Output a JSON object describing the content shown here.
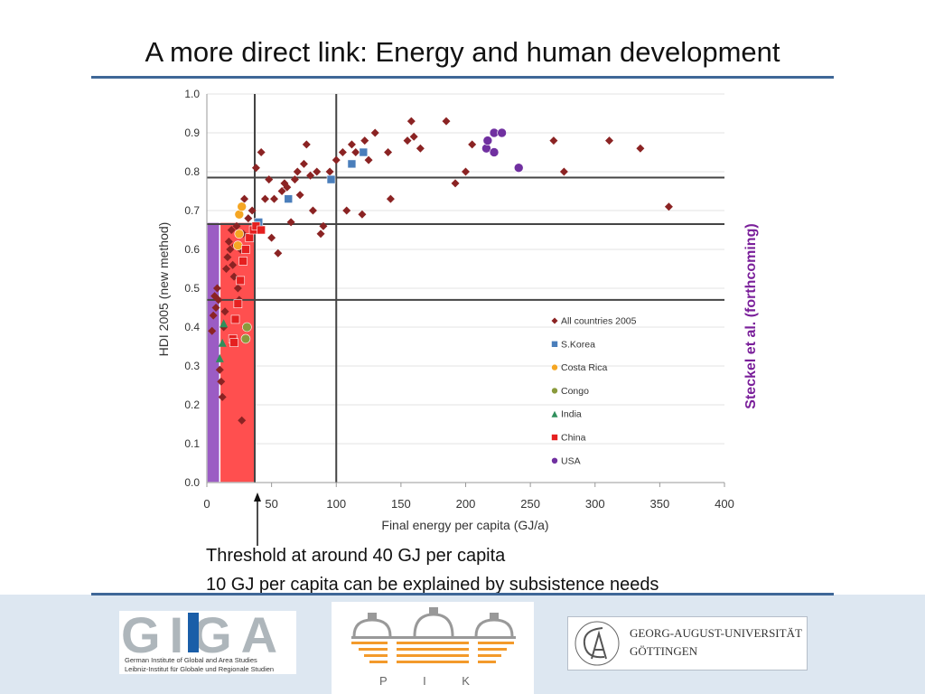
{
  "title": "A more direct link: Energy and human development",
  "chart_data": {
    "type": "scatter",
    "xlabel": "Final energy per capita (GJ/a)",
    "ylabel": "HDI 2005 (new method)",
    "xlim": [
      0,
      400
    ],
    "ylim": [
      0,
      1.0
    ],
    "xticks": [
      "0",
      "50",
      "100",
      "150",
      "200",
      "250",
      "300",
      "350",
      "400"
    ],
    "yticks": [
      "0.0",
      "0.1",
      "0.2",
      "0.3",
      "0.4",
      "0.5",
      "0.6",
      "0.7",
      "0.8",
      "0.9",
      "1.0"
    ],
    "grid": true,
    "legend_position": "lower-right",
    "reference_lines": {
      "vertical_x": [
        37,
        100
      ],
      "horizontal_y": [
        0.47,
        0.665,
        0.785
      ]
    },
    "shaded_regions": [
      {
        "x": [
          0,
          10
        ],
        "y": [
          0,
          0.67
        ],
        "color": "#9b5cc4"
      },
      {
        "x": [
          10,
          37
        ],
        "y": [
          0,
          0.67
        ],
        "color": "#ff4f4f"
      }
    ],
    "series": [
      {
        "name": "All countries 2005",
        "marker": "diamond",
        "color": "#8b2323",
        "points": [
          [
            4,
            0.39
          ],
          [
            5,
            0.43
          ],
          [
            6,
            0.48
          ],
          [
            7,
            0.45
          ],
          [
            8,
            0.5
          ],
          [
            9,
            0.47
          ],
          [
            10,
            0.29
          ],
          [
            11,
            0.26
          ],
          [
            12,
            0.22
          ],
          [
            13,
            0.4
          ],
          [
            14,
            0.44
          ],
          [
            15,
            0.55
          ],
          [
            16,
            0.58
          ],
          [
            17,
            0.62
          ],
          [
            18,
            0.6
          ],
          [
            19,
            0.65
          ],
          [
            20,
            0.56
          ],
          [
            21,
            0.53
          ],
          [
            22,
            0.61
          ],
          [
            23,
            0.66
          ],
          [
            24,
            0.5
          ],
          [
            25,
            0.47
          ],
          [
            26,
            0.6
          ],
          [
            27,
            0.16
          ],
          [
            28,
            0.64
          ],
          [
            29,
            0.73
          ],
          [
            30,
            0.4
          ],
          [
            32,
            0.68
          ],
          [
            35,
            0.7
          ],
          [
            38,
            0.81
          ],
          [
            40,
            0.66
          ],
          [
            42,
            0.85
          ],
          [
            45,
            0.73
          ],
          [
            48,
            0.78
          ],
          [
            50,
            0.63
          ],
          [
            52,
            0.73
          ],
          [
            55,
            0.59
          ],
          [
            58,
            0.75
          ],
          [
            60,
            0.77
          ],
          [
            62,
            0.76
          ],
          [
            65,
            0.67
          ],
          [
            68,
            0.78
          ],
          [
            70,
            0.8
          ],
          [
            72,
            0.74
          ],
          [
            75,
            0.82
          ],
          [
            77,
            0.87
          ],
          [
            80,
            0.79
          ],
          [
            82,
            0.7
          ],
          [
            85,
            0.8
          ],
          [
            88,
            0.64
          ],
          [
            90,
            0.66
          ],
          [
            95,
            0.8
          ],
          [
            100,
            0.83
          ],
          [
            105,
            0.85
          ],
          [
            108,
            0.7
          ],
          [
            112,
            0.87
          ],
          [
            115,
            0.85
          ],
          [
            120,
            0.69
          ],
          [
            122,
            0.88
          ],
          [
            125,
            0.83
          ],
          [
            130,
            0.9
          ],
          [
            140,
            0.85
          ],
          [
            142,
            0.73
          ],
          [
            155,
            0.88
          ],
          [
            158,
            0.93
          ],
          [
            160,
            0.89
          ],
          [
            165,
            0.86
          ],
          [
            185,
            0.93
          ],
          [
            192,
            0.77
          ],
          [
            200,
            0.8
          ],
          [
            205,
            0.87
          ],
          [
            268,
            0.88
          ],
          [
            276,
            0.8
          ],
          [
            311,
            0.88
          ],
          [
            335,
            0.86
          ],
          [
            357,
            0.71
          ]
        ]
      },
      {
        "name": "S.Korea",
        "marker": "square",
        "color": "#4a7ebb",
        "points": [
          [
            40,
            0.67
          ],
          [
            63,
            0.73
          ],
          [
            96,
            0.78
          ],
          [
            112,
            0.82
          ],
          [
            121,
            0.85
          ]
        ]
      },
      {
        "name": "Costa Rica",
        "marker": "circle",
        "color": "#f5a623",
        "points": [
          [
            24,
            0.61
          ],
          [
            25,
            0.64
          ],
          [
            25,
            0.69
          ],
          [
            27,
            0.71
          ]
        ]
      },
      {
        "name": "Congo",
        "marker": "circle",
        "color": "#8a9a3c",
        "points": [
          [
            30,
            0.37
          ],
          [
            31,
            0.4
          ]
        ]
      },
      {
        "name": "India",
        "marker": "triangle",
        "color": "#2f8f5b",
        "points": [
          [
            10,
            0.32
          ],
          [
            12,
            0.36
          ],
          [
            13,
            0.41
          ]
        ]
      },
      {
        "name": "China",
        "marker": "square",
        "color": "#e52020",
        "points": [
          [
            20,
            0.37
          ],
          [
            21,
            0.36
          ],
          [
            22,
            0.42
          ],
          [
            24,
            0.46
          ],
          [
            26,
            0.52
          ],
          [
            28,
            0.57
          ],
          [
            30,
            0.6
          ],
          [
            33,
            0.63
          ],
          [
            36,
            0.65
          ],
          [
            38,
            0.66
          ],
          [
            42,
            0.65
          ]
        ]
      },
      {
        "name": "USA",
        "marker": "circle",
        "color": "#7030a0",
        "points": [
          [
            216,
            0.86
          ],
          [
            217,
            0.88
          ],
          [
            222,
            0.85
          ],
          [
            222,
            0.9
          ],
          [
            228,
            0.9
          ],
          [
            241,
            0.81
          ]
        ]
      }
    ]
  },
  "attribution": "Steckel et al. (forthcoming)",
  "annotations": {
    "line1": "Threshold at around 40 GJ per capita",
    "line2": "10 GJ per capita can be explained by subsistence needs"
  },
  "logos": {
    "giga": {
      "wordmark": "GIGA",
      "line1": "German Institute of Global and Area Studies",
      "line2": "Leibniz-Institut für Globale und Regionale Studien"
    },
    "pik": {
      "wordmark": "P I K"
    },
    "goettingen": {
      "line1": "GEORG-AUGUST-UNIVERSITÄT",
      "line2": "GÖTTINGEN"
    }
  },
  "colors": {
    "rule": "#3f6797",
    "footer_bg": "#dde7f1",
    "steckel": "#7a1f9a"
  }
}
